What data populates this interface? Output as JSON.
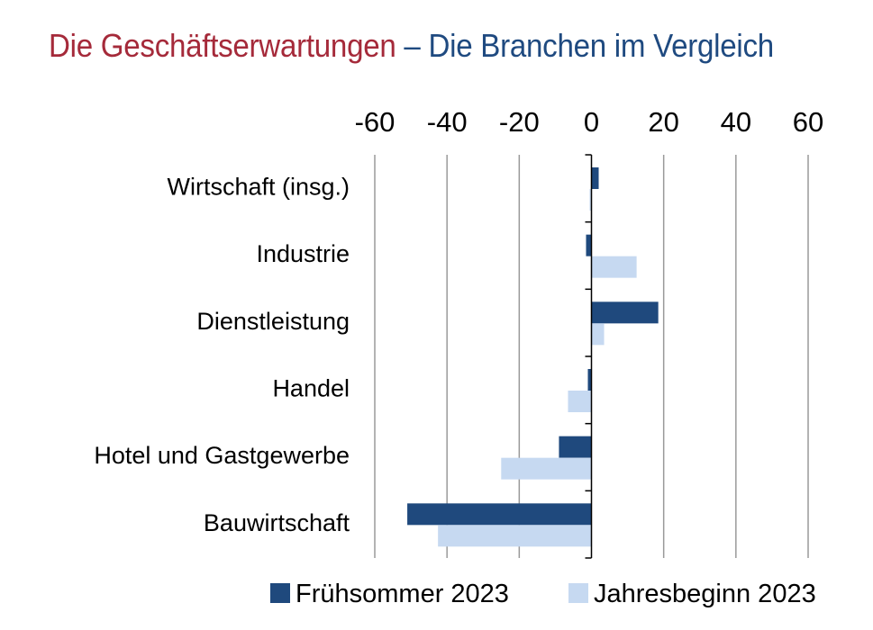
{
  "header": {
    "title_part1": "Die Geschäftserwartungen",
    "title_part2": " – Die Branchen im Vergleich"
  },
  "colors": {
    "title_part1": "#a52a3a",
    "title_part2": "#1f4a80",
    "series_1": "#1f497d",
    "series_2": "#c6d9f1",
    "gridline": "#9a9a9a"
  },
  "chart_data": {
    "type": "bar",
    "orientation": "horizontal",
    "title": "Die Geschäftserwartungen – Die Branchen im Vergleich",
    "categories": [
      "Wirtschaft (insg.)",
      "Industrie",
      "Dienstleistung",
      "Handel",
      "Hotel und Gastgewerbe",
      "Bauwirtschaft"
    ],
    "series": [
      {
        "name": "Frühsommer 2023",
        "color": "#1f497d",
        "values": [
          2,
          -1.5,
          18.5,
          -1,
          -9,
          -51
        ]
      },
      {
        "name": "Jahresbeginn 2023",
        "color": "#c6d9f1",
        "values": [
          -0.5,
          12.5,
          3.5,
          -6.5,
          -25,
          -42.5
        ]
      }
    ],
    "xlim": [
      -60,
      60
    ],
    "xticks": [
      -60,
      -40,
      -20,
      0,
      20,
      40,
      60
    ],
    "xtick_labels": [
      "-60",
      "-40",
      "-20",
      "0",
      "20",
      "40",
      "60"
    ],
    "axis_position": "top",
    "grid": true,
    "legend": "bottom"
  }
}
